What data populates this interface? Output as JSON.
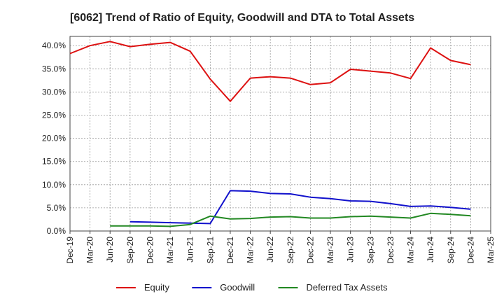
{
  "chart_data": {
    "type": "line",
    "title": "[6062]  Trend of Ratio of Equity, Goodwill and DTA to Total Assets",
    "x": [
      "Dec-19",
      "Mar-20",
      "Jun-20",
      "Sep-20",
      "Dec-20",
      "Mar-21",
      "Jun-21",
      "Sep-21",
      "Dec-21",
      "Mar-22",
      "Jun-22",
      "Sep-22",
      "Dec-22",
      "Mar-23",
      "Jun-23",
      "Sep-23",
      "Dec-23",
      "Mar-24",
      "Jun-24",
      "Sep-24",
      "Dec-24",
      "Mar-25"
    ],
    "y_ticks": [
      "0.0%",
      "5.0%",
      "10.0%",
      "15.0%",
      "20.0%",
      "25.0%",
      "30.0%",
      "35.0%",
      "40.0%"
    ],
    "ylim": [
      0,
      42
    ],
    "grid": true,
    "legend_position": "bottom",
    "series": [
      {
        "name": "Equity",
        "color": "#dd1111",
        "values": [
          38.3,
          40.0,
          40.9,
          39.8,
          40.3,
          40.7,
          38.8,
          32.8,
          28.0,
          33.0,
          33.3,
          33.0,
          31.6,
          32.0,
          34.9,
          34.5,
          34.1,
          32.9,
          39.5,
          36.8,
          35.9,
          null
        ]
      },
      {
        "name": "Goodwill",
        "color": "#1111cc",
        "values": [
          null,
          null,
          null,
          2.0,
          1.9,
          1.8,
          1.7,
          1.6,
          8.7,
          8.6,
          8.1,
          8.0,
          7.3,
          7.0,
          6.5,
          6.4,
          5.9,
          5.3,
          5.4,
          5.1,
          4.7,
          null
        ]
      },
      {
        "name": "Deferred Tax Assets",
        "color": "#228822",
        "values": [
          null,
          null,
          1.1,
          1.1,
          1.1,
          1.0,
          1.4,
          3.2,
          2.6,
          2.7,
          3.0,
          3.1,
          2.8,
          2.8,
          3.1,
          3.2,
          3.0,
          2.8,
          3.8,
          3.6,
          3.3,
          null
        ]
      }
    ]
  }
}
